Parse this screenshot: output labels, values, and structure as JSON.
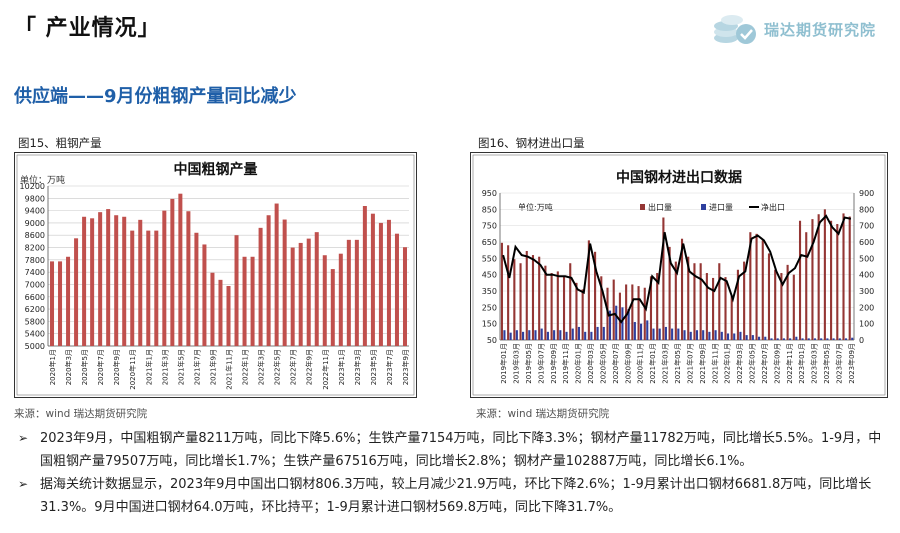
{
  "header": {
    "section_title": "「 产业情况」",
    "brand_name": "瑞达期货研究院",
    "headline": "供应端——9月份粗钢产量同比减少"
  },
  "figures": {
    "fig1_caption": "图15、粗钢产量",
    "fig2_caption": "图16、钢材进出口量",
    "fig1_source": "来源：wind  瑞达期货研究院",
    "fig2_source": "来源：wind  瑞达期货研究院"
  },
  "colors": {
    "bar_red": "#c0504d",
    "bar_maroon": "#943634",
    "bar_blue": "#2e3f9e",
    "line_black": "#000000",
    "headline_blue": "#1f5fa8",
    "plot_bg": "#ffffff"
  },
  "chart_data": [
    {
      "type": "bar",
      "title": "中国粗钢产量",
      "unit": "单位：万吨",
      "ylim": [
        5000,
        10200
      ],
      "yticks": [
        5000,
        5400,
        5800,
        6200,
        6600,
        7000,
        7400,
        7800,
        8200,
        8600,
        9000,
        9400,
        9800,
        10200
      ],
      "categories": [
        "2020年1月",
        "2020年2月",
        "2020年3月",
        "2020年4月",
        "2020年5月",
        "2020年6月",
        "2020年7月",
        "2020年8月",
        "2020年9月",
        "2020年10月",
        "2020年11月",
        "2020年12月",
        "2021年1月",
        "2021年2月",
        "2021年3月",
        "2021年4月",
        "2021年5月",
        "2021年6月",
        "2021年7月",
        "2021年8月",
        "2021年9月",
        "2021年10月",
        "2021年11月",
        "2021年12月",
        "2022年1月",
        "2022年2月",
        "2022年3月",
        "2022年4月",
        "2022年5月",
        "2022年6月",
        "2022年7月",
        "2022年8月",
        "2022年9月",
        "2022年10月",
        "2022年11月",
        "2022年12月",
        "2023年1月",
        "2023年2月",
        "2023年3月",
        "2023年4月",
        "2023年5月",
        "2023年6月",
        "2023年7月",
        "2023年8月",
        "2023年9月"
      ],
      "tick_labels": [
        "2020年1月",
        "2020年3月",
        "2020年5月",
        "2020年7月",
        "2020年9月",
        "2020年11月",
        "2021年1月",
        "2021年3月",
        "2021年5月",
        "2021年7月",
        "2021年9月",
        "2021年11月",
        "2022年1月",
        "2022年3月",
        "2022年5月",
        "2022年7月",
        "2022年9月",
        "2022年11月",
        "2023年1月",
        "2023年3月",
        "2023年5月",
        "2023年7月",
        "2023年9月"
      ],
      "values": [
        7750,
        7750,
        7900,
        8500,
        9200,
        9150,
        9350,
        9450,
        9250,
        9200,
        8750,
        9100,
        8750,
        8750,
        9400,
        9780,
        9950,
        9380,
        8680,
        8300,
        7380,
        7150,
        6950,
        8600,
        7900,
        7900,
        8840,
        9250,
        9630,
        9110,
        8200,
        8350,
        8490,
        8700,
        7950,
        7500,
        8000,
        8450,
        8450,
        9550,
        9300,
        9000,
        9100,
        8650,
        8211
      ]
    },
    {
      "type": "bar+line",
      "title": "中国钢材进出口数据",
      "unit": "单位:万吨",
      "legend": [
        "出口量",
        "进口量",
        "净出口"
      ],
      "ylim_left": [
        50,
        950
      ],
      "yticks_left": [
        50,
        150,
        250,
        350,
        450,
        550,
        650,
        750,
        850,
        950
      ],
      "ylim_right": [
        0,
        900
      ],
      "yticks_right": [
        0,
        100,
        200,
        300,
        400,
        500,
        600,
        700,
        800,
        900
      ],
      "categories": [
        "2019年01月",
        "2019年02月",
        "2019年03月",
        "2019年04月",
        "2019年05月",
        "2019年06月",
        "2019年07月",
        "2019年08月",
        "2019年09月",
        "2019年10月",
        "2019年11月",
        "2019年12月",
        "2020年01月",
        "2020年02月",
        "2020年03月",
        "2020年04月",
        "2020年05月",
        "2020年06月",
        "2020年07月",
        "2020年08月",
        "2020年09月",
        "2020年10月",
        "2020年11月",
        "2020年12月",
        "2021年01月",
        "2021年02月",
        "2021年03月",
        "2021年04月",
        "2021年05月",
        "2021年06月",
        "2021年07月",
        "2021年08月",
        "2021年09月",
        "2021年10月",
        "2021年11月",
        "2021年12月",
        "2022年01月",
        "2022年02月",
        "2022年03月",
        "2022年04月",
        "2022年05月",
        "2022年06月",
        "2022年07月",
        "2022年08月",
        "2022年09月",
        "2022年10月",
        "2022年11月",
        "2022年12月",
        "2023年01月",
        "2023年02月",
        "2023年03月",
        "2023年04月",
        "2023年05月",
        "2023年06月",
        "2023年07月",
        "2023年08月",
        "2023年09月"
      ],
      "tick_labels": [
        "2019年01月",
        "2019年03月",
        "2019年05月",
        "2019年07月",
        "2019年09月",
        "2019年11月",
        "2020年01月",
        "2020年03月",
        "2020年05月",
        "2020年07月",
        "2020年09月",
        "2020年11月",
        "2021年01月",
        "2021年03月",
        "2021年05月",
        "2021年07月",
        "2021年09月",
        "2021年11月",
        "2022年01月",
        "2022年03月",
        "2022年05月",
        "2022年07月",
        "2022年09月",
        "2022年11月",
        "2023年01月",
        "2023年03月",
        "2023年05月",
        "2023年07月",
        "2023年09月"
      ],
      "series": [
        {
          "name": "出口量",
          "axis": "left",
          "values": [
            645,
            630,
            545,
            520,
            595,
            570,
            560,
            505,
            460,
            470,
            440,
            520,
            400,
            360,
            660,
            590,
            440,
            370,
            420,
            340,
            390,
            390,
            380,
            370,
            440,
            460,
            800,
            620,
            530,
            670,
            560,
            520,
            520,
            460,
            430,
            520,
            435,
            320,
            480,
            530,
            710,
            700,
            660,
            580,
            480,
            460,
            510,
            450,
            780,
            710,
            790,
            820,
            850,
            780,
            760,
            825,
            806
          ]
        },
        {
          "name": "进口量",
          "axis": "left",
          "values": [
            110,
            95,
            110,
            100,
            110,
            110,
            120,
            100,
            110,
            110,
            100,
            120,
            130,
            100,
            100,
            130,
            130,
            230,
            260,
            250,
            240,
            160,
            150,
            170,
            120,
            120,
            130,
            120,
            120,
            110,
            100,
            110,
            110,
            100,
            110,
            100,
            90,
            90,
            100,
            80,
            80,
            70,
            70,
            60,
            60,
            60,
            60,
            70,
            60,
            60,
            60,
            60,
            60,
            60,
            60,
            60,
            64
          ]
        },
        {
          "name": "净出口",
          "axis": "right",
          "values": [
            520,
            380,
            570,
            520,
            510,
            490,
            460,
            400,
            400,
            390,
            390,
            380,
            310,
            290,
            590,
            420,
            300,
            150,
            160,
            110,
            160,
            250,
            250,
            190,
            390,
            350,
            660,
            470,
            410,
            590,
            420,
            390,
            370,
            320,
            300,
            380,
            360,
            250,
            390,
            420,
            620,
            640,
            610,
            540,
            420,
            340,
            410,
            440,
            520,
            510,
            600,
            720,
            760,
            690,
            650,
            750,
            742
          ]
        }
      ]
    }
  ],
  "bullets": [
    "2023年9月，中国粗钢产量8211万吨，同比下降5.6%；生铁产量7154万吨，同比下降3.3%；钢材产量11782万吨，同比增长5.5%。1-9月，中国粗钢产量79507万吨，同比增长1.7%；生铁产量67516万吨，同比增长2.8%；钢材产量102887万吨，同比增长6.1%。",
    "据海关统计数据显示，2023年9月中国出口钢材806.3万吨，较上月减少21.9万吨，环比下降2.6%；1-9月累计出口钢材6681.8万吨，同比增长31.3%。9月中国进口钢材64.0万吨，环比持平；1-9月累计进口钢材569.8万吨，同比下降31.7%。"
  ]
}
